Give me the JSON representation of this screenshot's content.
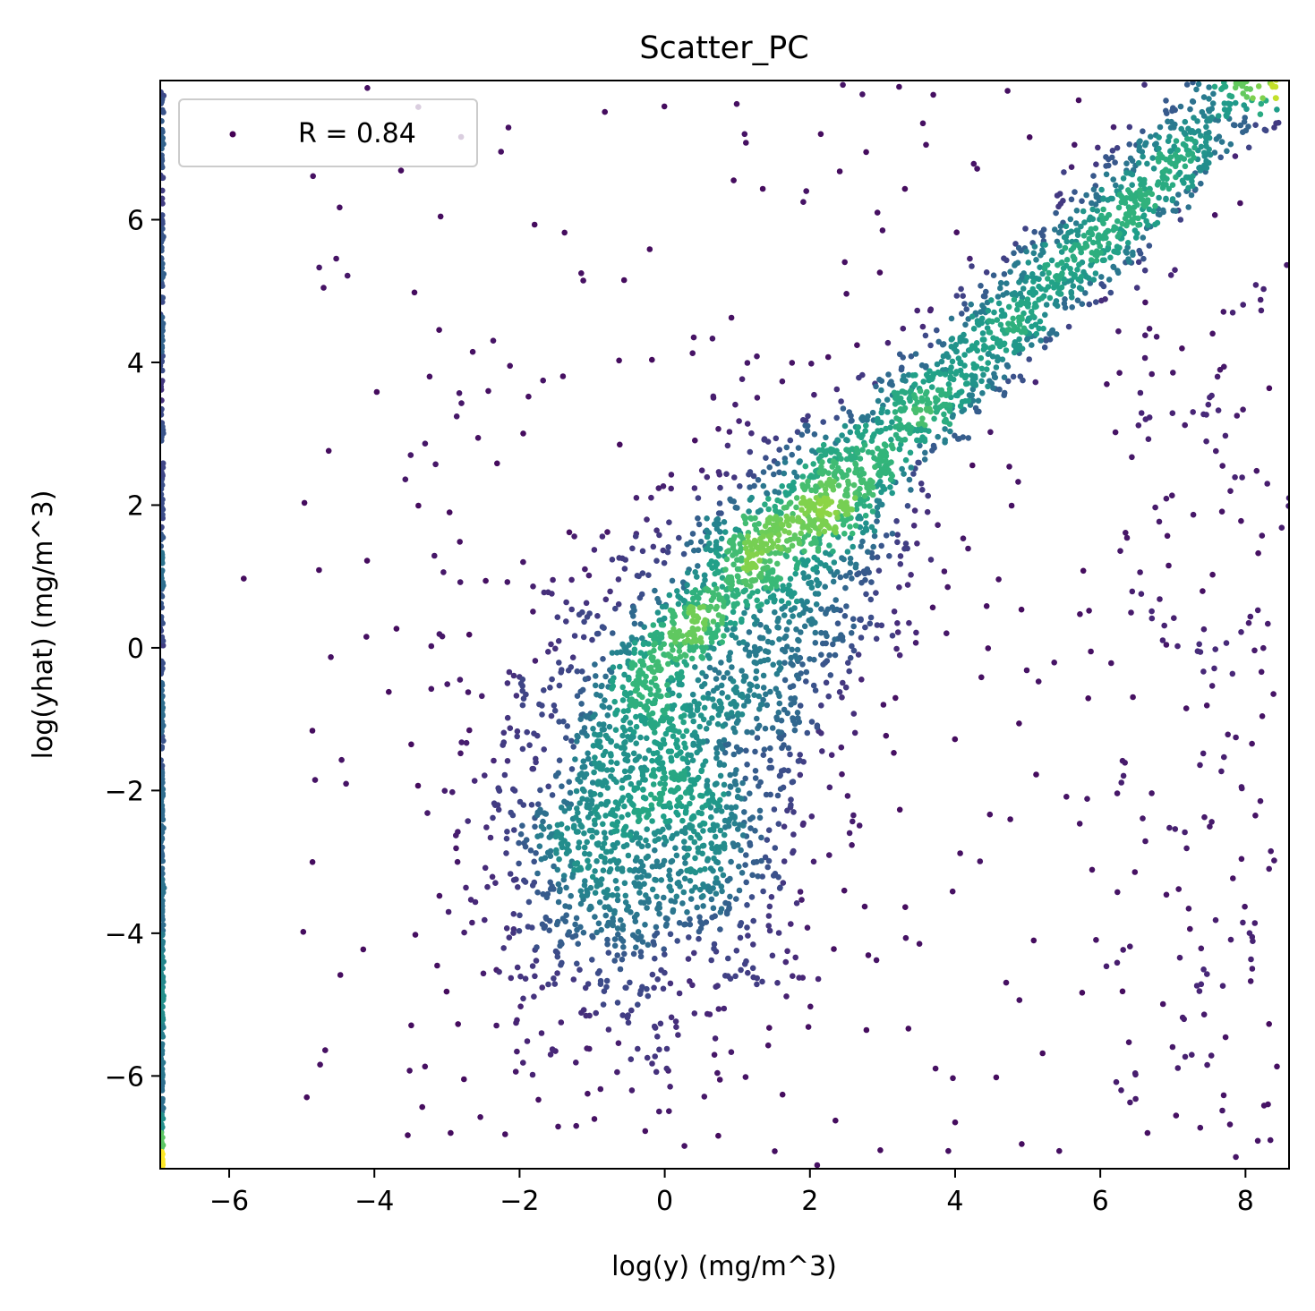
{
  "chart_data": {
    "type": "scatter",
    "title": "Scatter_PC",
    "xlabel": "log(y) (mg/m^3)",
    "ylabel": "log(yhat) (mg/m^3)",
    "xlim": [
      -6.95,
      8.6
    ],
    "ylim": [
      -7.3,
      7.95
    ],
    "xticks": [
      -6,
      -4,
      -2,
      0,
      2,
      4,
      6,
      8
    ],
    "yticks": [
      -6,
      -4,
      -2,
      0,
      2,
      4,
      6
    ],
    "xtick_labels": [
      "−6",
      "−4",
      "−2",
      "0",
      "2",
      "4",
      "6",
      "8"
    ],
    "ytick_labels": [
      "−6",
      "−4",
      "−2",
      "0",
      "2",
      "4",
      "6"
    ],
    "grid": false,
    "legend": {
      "position": "upper-left",
      "entries": [
        "R = 0.84"
      ]
    },
    "colormap": "viridis",
    "series": [
      {
        "name": "R = 0.84",
        "color": "#440154",
        "clusters": [
          {
            "kind": "diagonal_band",
            "x_range": [
              -0.5,
              8.5
            ],
            "slope": 0.98,
            "intercept": 0.1,
            "spread": 0.45,
            "n": 1400
          },
          {
            "kind": "diagonal_band",
            "x_range": [
              2.0,
              7.5
            ],
            "slope": 1.0,
            "intercept": -0.5,
            "spread": 0.3,
            "n": 450
          },
          {
            "kind": "blob",
            "center": [
              -0.2,
              -2.2
            ],
            "std": [
              1.3,
              1.7
            ],
            "rotation_deg": 35,
            "n": 1700
          },
          {
            "kind": "blob",
            "center": [
              1.8,
              1.2
            ],
            "std": [
              1.1,
              1.3
            ],
            "rotation_deg": 45,
            "n": 700
          },
          {
            "kind": "sparse",
            "x_range": [
              -5.0,
              8.6
            ],
            "y_range": [
              -7.3,
              7.9
            ],
            "n": 300
          },
          {
            "kind": "sparse_column",
            "x_range": [
              6.2,
              8.4
            ],
            "y_range": [
              -7.0,
              5.5
            ],
            "n": 150
          },
          {
            "kind": "edge_column",
            "x": -6.93,
            "y_range": [
              -7.3,
              7.8
            ],
            "n": 500
          }
        ],
        "sample_points": [
          [
            -5.8,
            0.97
          ],
          [
            -4.98,
            -3.98
          ],
          [
            -4.6,
            -0.13
          ],
          [
            -4.1,
            1.22
          ],
          [
            -3.5,
            2.7
          ],
          [
            -2.83,
            3.57
          ],
          [
            -2.43,
            3.6
          ],
          [
            0.4,
            4.35
          ],
          [
            -1.15,
            5.25
          ],
          [
            1.1,
            7.2
          ],
          [
            2.15,
            7.2
          ],
          [
            3.6,
            7.05
          ],
          [
            3.7,
            7.75
          ],
          [
            0.95,
            6.55
          ],
          [
            1.95,
            6.4
          ],
          [
            3.0,
            5.85
          ],
          [
            8.3,
            2.3
          ],
          [
            8.6,
            2.1
          ],
          [
            8.35,
            -2.85
          ],
          [
            7.95,
            -1.97
          ],
          [
            -2.95,
            -6.8
          ],
          [
            2.1,
            -7.25
          ],
          [
            4.0,
            -6.65
          ],
          [
            6.65,
            -6.8
          ],
          [
            7.7,
            -6.27
          ]
        ]
      }
    ]
  }
}
